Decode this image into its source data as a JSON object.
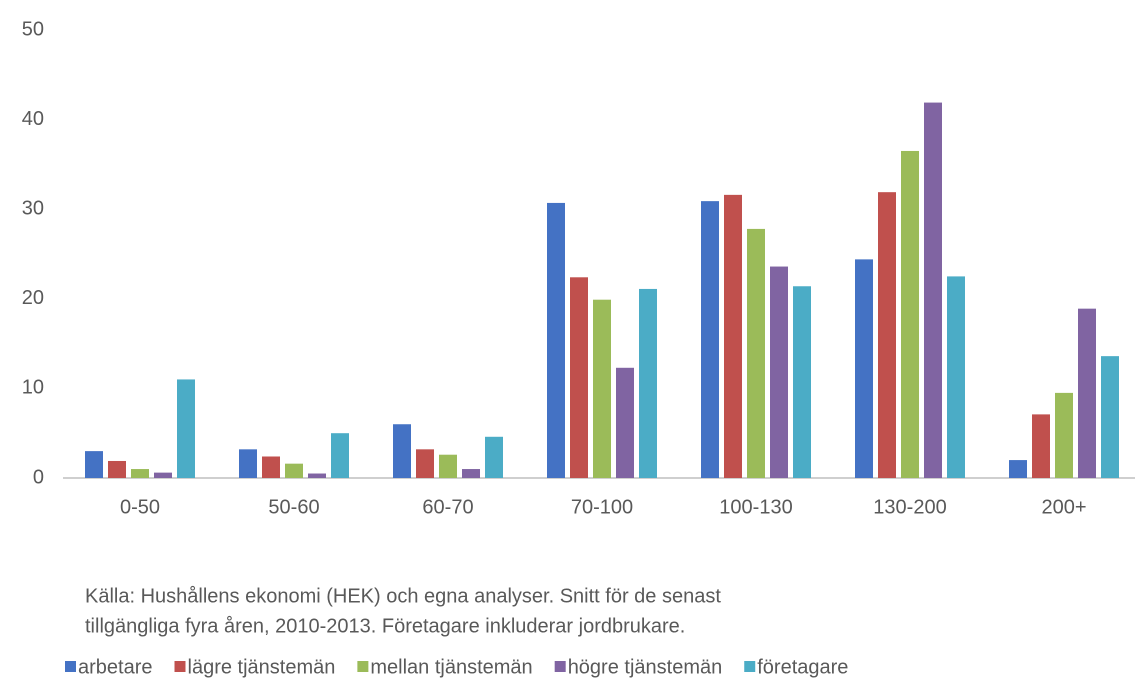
{
  "chart_data": {
    "type": "bar",
    "categories": [
      "0-50",
      "50-60",
      "60-70",
      "70-100",
      "100-130",
      "130-200",
      "200+"
    ],
    "series": [
      {
        "name": "arbetare",
        "color": "#4472c4",
        "values": [
          3.0,
          3.2,
          6.0,
          30.7,
          30.9,
          24.4,
          2.0
        ]
      },
      {
        "name": "lägre tjänstemän",
        "color": "#c0504d",
        "values": [
          1.9,
          2.4,
          3.2,
          22.4,
          31.6,
          31.9,
          7.1
        ]
      },
      {
        "name": "mellan tjänstemän",
        "color": "#9bbb59",
        "values": [
          1.0,
          1.6,
          2.6,
          19.9,
          27.8,
          36.5,
          9.5
        ]
      },
      {
        "name": "högre tjänstemän",
        "color": "#8064a2",
        "values": [
          0.6,
          0.5,
          1.0,
          12.3,
          23.6,
          41.9,
          18.9
        ]
      },
      {
        "name": "företagare",
        "color": "#4bacc6",
        "values": [
          11.0,
          5.0,
          4.6,
          21.1,
          21.4,
          22.5,
          13.6
        ]
      }
    ],
    "ylim": [
      0,
      50
    ],
    "yticks": [
      0,
      10,
      20,
      30,
      40,
      50
    ],
    "grid": false,
    "legend": "bottom",
    "note": [
      "Källa: Hushållens ekonomi (HEK) och egna analyser. Snitt för de senast",
      "tillgängliga fyra åren, 2010-2013. Företagare inkluderar jordbrukare."
    ]
  }
}
